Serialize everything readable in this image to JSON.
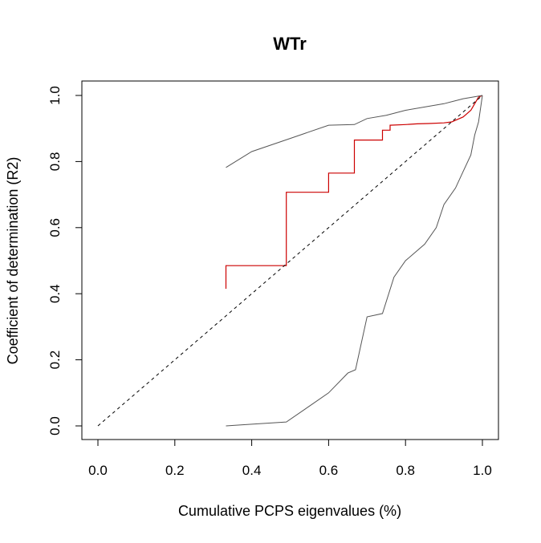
{
  "chart_data": {
    "type": "line",
    "title": "WTr",
    "xlabel": "Cumulative PCPS eigenvalues (%)",
    "ylabel": "Coefficient of determination (R2)",
    "xlim": [
      0.0,
      1.0
    ],
    "ylim": [
      0.0,
      1.0
    ],
    "x_ticks": [
      "0.0",
      "0.2",
      "0.4",
      "0.6",
      "0.8",
      "1.0"
    ],
    "y_ticks": [
      "0.0",
      "0.2",
      "0.4",
      "0.6",
      "0.8",
      "1.0"
    ],
    "grid": false,
    "legend": "none",
    "series": [
      {
        "style": "step",
        "color": "#cc0000",
        "x": [
          0.333,
          0.333,
          0.49,
          0.49,
          0.6,
          0.6,
          0.667,
          0.667,
          0.74,
          0.74,
          0.76,
          0.76,
          0.8,
          0.83,
          0.86,
          0.9,
          0.92,
          0.93,
          0.95,
          0.96,
          0.97,
          0.975,
          0.98,
          0.985,
          0.99,
          1.0
        ],
        "y": [
          0.415,
          0.485,
          0.485,
          0.707,
          0.707,
          0.765,
          0.765,
          0.865,
          0.865,
          0.895,
          0.895,
          0.91,
          0.912,
          0.914,
          0.915,
          0.917,
          0.92,
          0.925,
          0.935,
          0.945,
          0.955,
          0.965,
          0.975,
          0.985,
          0.995,
          1.0
        ]
      },
      {
        "style": "line",
        "color": "#555555",
        "x": [
          0.333,
          0.4,
          0.5,
          0.6,
          0.667,
          0.7,
          0.75,
          0.8,
          0.85,
          0.9,
          0.95,
          1.0
        ],
        "y": [
          0.782,
          0.83,
          0.87,
          0.91,
          0.912,
          0.93,
          0.94,
          0.955,
          0.965,
          0.975,
          0.99,
          1.0
        ]
      },
      {
        "style": "line",
        "color": "#555555",
        "x": [
          0.333,
          0.4,
          0.49,
          0.55,
          0.6,
          0.65,
          0.67,
          0.7,
          0.72,
          0.74,
          0.77,
          0.8,
          0.82,
          0.85,
          0.88,
          0.9,
          0.93,
          0.95,
          0.97,
          0.98,
          0.99,
          1.0
        ],
        "y": [
          0.0,
          0.005,
          0.012,
          0.06,
          0.1,
          0.16,
          0.17,
          0.33,
          0.335,
          0.34,
          0.45,
          0.5,
          0.52,
          0.55,
          0.6,
          0.67,
          0.72,
          0.77,
          0.82,
          0.88,
          0.92,
          1.0
        ]
      },
      {
        "style": "dashed",
        "color": "#000000",
        "x": [
          0.0,
          1.0
        ],
        "y": [
          0.0,
          1.0
        ]
      }
    ]
  }
}
